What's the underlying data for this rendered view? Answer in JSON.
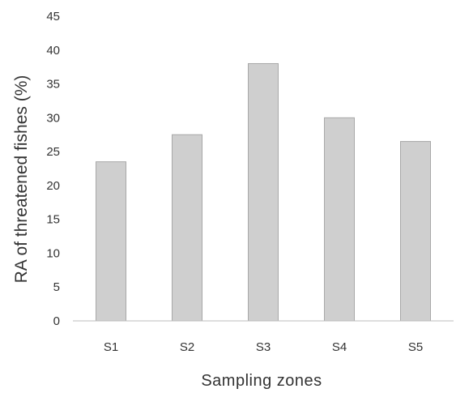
{
  "chart_data": {
    "type": "bar",
    "title": "",
    "xlabel": "Sampling zones",
    "ylabel": "RA of threatened fishes (%)",
    "categories": [
      "S1",
      "S2",
      "S3",
      "S4",
      "S5"
    ],
    "values": [
      23.5,
      27.5,
      38,
      30,
      26.5
    ],
    "ylim": [
      0,
      45
    ],
    "yticks": [
      "0",
      "5",
      "10",
      "15",
      "20",
      "25",
      "30",
      "35",
      "40",
      "45"
    ],
    "grid": false,
    "legend": "none",
    "bar_color": "#cfcfcf",
    "bar_edge_color": "#a8a8a8",
    "axis_color": "#bdbdbd"
  }
}
